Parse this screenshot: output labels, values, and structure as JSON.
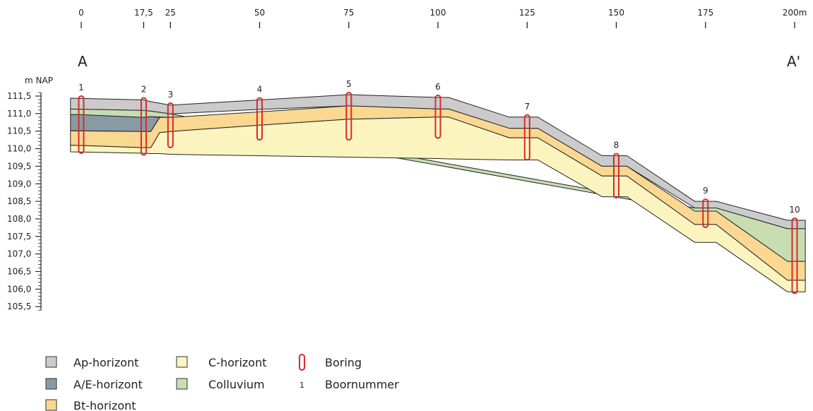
{
  "section": {
    "start_label": "A",
    "end_label": "A'"
  },
  "x_axis": {
    "ticks": [
      {
        "value": 0,
        "label": "0"
      },
      {
        "value": 17.5,
        "label": "17,5"
      },
      {
        "value": 25,
        "label": "25"
      },
      {
        "value": 50,
        "label": "50"
      },
      {
        "value": 75,
        "label": "75"
      },
      {
        "value": 100,
        "label": "100"
      },
      {
        "value": 125,
        "label": "125"
      },
      {
        "value": 150,
        "label": "150"
      },
      {
        "value": 175,
        "label": "175"
      },
      {
        "value": 200,
        "label": "200m"
      }
    ]
  },
  "y_axis": {
    "title": "m NAP",
    "ticks": [
      {
        "value": 111.5,
        "label": "111,5"
      },
      {
        "value": 111.0,
        "label": "111,0"
      },
      {
        "value": 110.5,
        "label": "110,5"
      },
      {
        "value": 110.0,
        "label": "110,0"
      },
      {
        "value": 109.5,
        "label": "109,5"
      },
      {
        "value": 109.0,
        "label": "109,0"
      },
      {
        "value": 108.5,
        "label": "108,5"
      },
      {
        "value": 108.0,
        "label": "108,0"
      },
      {
        "value": 107.5,
        "label": "107,5"
      },
      {
        "value": 107.0,
        "label": "107,0"
      },
      {
        "value": 106.5,
        "label": "106,5"
      },
      {
        "value": 106.0,
        "label": "106,0"
      },
      {
        "value": 105.5,
        "label": "105,5"
      }
    ],
    "minor_step": 0.1,
    "range": [
      105.4,
      111.6
    ]
  },
  "colors": {
    "ap": "#cbcbcb",
    "ae": "#8a9aa5",
    "bt": "#fad892",
    "c": "#fbf4bf",
    "colluvium": "#c8ddb2",
    "boring": "#d52b2b",
    "line": "#222222"
  },
  "chart_data": {
    "type": "cross-section",
    "x_unit": "m",
    "y_unit": "m NAP",
    "layers": [
      {
        "key": "ap",
        "x": [
          -3,
          17.5,
          19.5,
          25,
          50,
          75,
          100,
          103,
          120,
          128,
          146,
          153,
          172,
          178,
          198,
          203
        ],
        "top": [
          111.44,
          111.39,
          111.34,
          111.24,
          111.39,
          111.54,
          111.46,
          111.46,
          110.9,
          110.9,
          109.8,
          109.8,
          108.5,
          108.5,
          107.96,
          107.96
        ],
        "bottom": [
          111.13,
          111.09,
          111.07,
          110.99,
          111.12,
          111.22,
          111.13,
          111.13,
          110.58,
          110.58,
          109.5,
          109.5,
          108.31,
          108.31,
          107.72,
          107.72
        ]
      },
      {
        "key": "colluvium",
        "x": [
          -3,
          17.5,
          19.5,
          25,
          172,
          178,
          198,
          203
        ],
        "top": [
          111.13,
          111.09,
          111.07,
          110.99,
          108.31,
          108.31,
          107.72,
          107.72
        ],
        "bottom": [
          110.97,
          110.89,
          110.91,
          110.89,
          108.22,
          108.22,
          106.79,
          106.79
        ]
      },
      {
        "key": "ae",
        "x": [
          -3,
          0,
          17.5,
          19.5,
          22
        ],
        "top": [
          110.97,
          110.97,
          110.89,
          110.91,
          110.89
        ],
        "bottom": [
          110.51,
          110.51,
          110.49,
          110.49,
          110.89
        ]
      },
      {
        "key": "bt",
        "x": [
          -3,
          17.5,
          19.5,
          22,
          25,
          50,
          75,
          100,
          103,
          120,
          128,
          146,
          153,
          172,
          178,
          198,
          203
        ],
        "top": [
          110.51,
          110.49,
          110.49,
          110.89,
          110.89,
          111.05,
          111.22,
          111.13,
          111.13,
          110.58,
          110.58,
          109.5,
          109.5,
          108.22,
          108.22,
          106.79,
          106.79
        ],
        "bottom": [
          110.1,
          110.03,
          110.03,
          110.46,
          110.49,
          110.67,
          110.84,
          110.9,
          110.9,
          110.31,
          110.31,
          109.22,
          109.22,
          107.84,
          107.84,
          106.25,
          106.25
        ]
      },
      {
        "key": "c",
        "x": [
          -3,
          17.5,
          19.5,
          22,
          25,
          50,
          75,
          100,
          103,
          120,
          128,
          146,
          153,
          172,
          178,
          198,
          203
        ],
        "top": [
          110.1,
          110.03,
          110.03,
          110.46,
          110.49,
          110.67,
          110.84,
          110.9,
          110.9,
          110.31,
          110.31,
          109.22,
          109.22,
          107.84,
          107.84,
          106.25,
          106.25
        ],
        "bottom": [
          109.91,
          109.87,
          109.86,
          109.86,
          109.84,
          109.8,
          109.76,
          109.72,
          109.71,
          109.68,
          109.68,
          108.63,
          108.63,
          107.33,
          107.33,
          105.92,
          105.92
        ]
      }
    ],
    "borings": [
      {
        "number": "1",
        "x": 0,
        "top": 111.5,
        "bottom": 109.87
      },
      {
        "number": "2",
        "x": 17.5,
        "top": 111.45,
        "bottom": 109.82
      },
      {
        "number": "3",
        "x": 25,
        "top": 111.3,
        "bottom": 110.03
      },
      {
        "number": "4",
        "x": 50,
        "top": 111.45,
        "bottom": 110.25
      },
      {
        "number": "5",
        "x": 75,
        "top": 111.6,
        "bottom": 110.25
      },
      {
        "number": "6",
        "x": 100,
        "top": 111.52,
        "bottom": 110.3
      },
      {
        "number": "7",
        "x": 125,
        "top": 110.96,
        "bottom": 109.68
      },
      {
        "number": "8",
        "x": 150,
        "top": 109.86,
        "bottom": 108.6
      },
      {
        "number": "9",
        "x": 175,
        "top": 108.56,
        "bottom": 107.76
      },
      {
        "number": "10",
        "x": 200,
        "top": 108.02,
        "bottom": 105.88
      }
    ]
  },
  "legend": {
    "items": [
      {
        "key": "ap",
        "label": "Ap-horizont"
      },
      {
        "key": "ae",
        "label": "A/E-horizont"
      },
      {
        "key": "bt",
        "label": "Bt-horizont"
      },
      {
        "key": "c",
        "label": "C-horizont"
      },
      {
        "key": "colluvium",
        "label": "Colluvium"
      }
    ],
    "boring_label": "Boring",
    "number_sample": "1",
    "number_label": "Boornummer"
  }
}
